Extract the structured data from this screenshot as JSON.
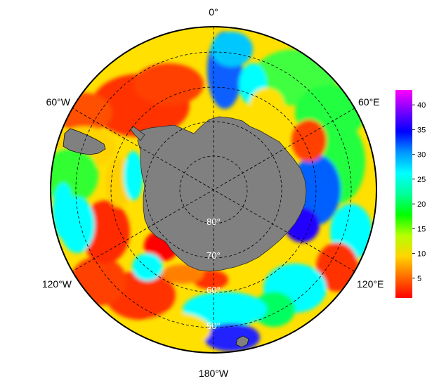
{
  "map": {
    "projection": "south-polar stereographic",
    "longitude_labels": [
      "0°",
      "60°E",
      "120°E",
      "180°W",
      "120°W",
      "60°W"
    ],
    "latitude_labels": [
      "80°",
      "70°",
      "60°",
      "50°"
    ],
    "graticule_style": "dashed",
    "land_color": "#808080",
    "coastline_color": "#000000"
  },
  "colorbar": {
    "orientation": "vertical",
    "ticks": [
      "5",
      "10",
      "15",
      "20",
      "25",
      "30",
      "35",
      "40"
    ],
    "tick_values": [
      5,
      10,
      15,
      20,
      25,
      30,
      35,
      40
    ],
    "range": [
      1,
      43
    ],
    "colormap": [
      "#ff0000",
      "#ff6a00",
      "#ffd400",
      "#b6ff00",
      "#00ff00",
      "#00ff9a",
      "#00ffff",
      "#0096ff",
      "#0000ff",
      "#7a00ff",
      "#ff00ff"
    ]
  }
}
